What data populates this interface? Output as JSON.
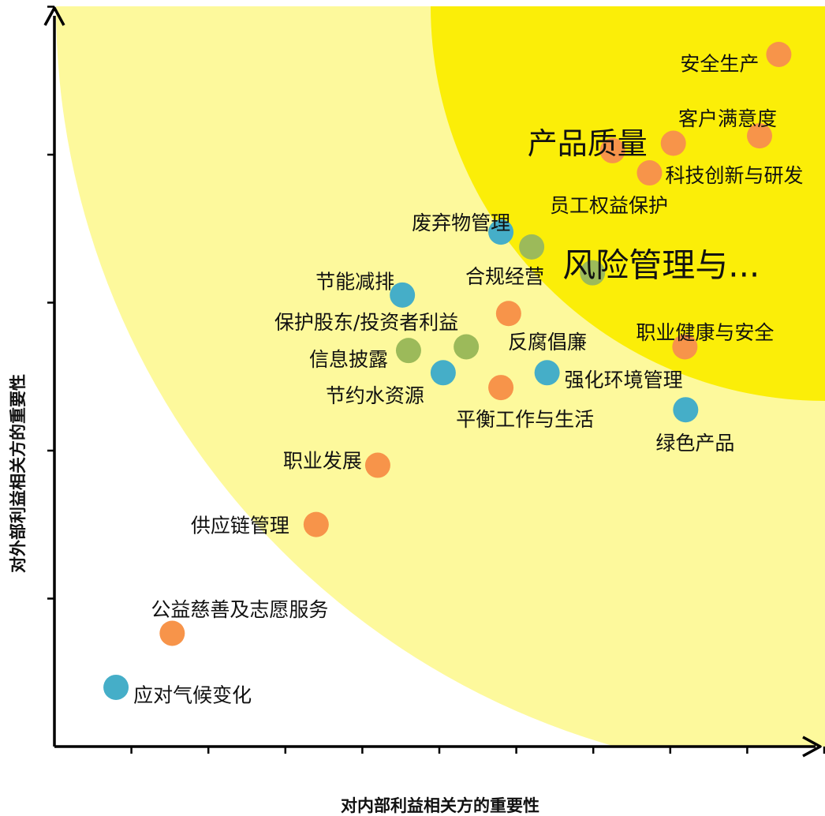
{
  "chart_data": {
    "type": "scatter",
    "title": "",
    "xlabel": "对内部利益相关方的重要性",
    "ylabel": "对外部利益相关方的重要性",
    "xlim": [
      0,
      10
    ],
    "ylim": [
      0,
      10
    ],
    "grid": false,
    "legend": "none",
    "colors": {
      "orange": "#f7944a",
      "blue": "#45aec8",
      "green": "#9cba5a",
      "outer_zone": "#fdf99c",
      "inner_zone": "#fbee08",
      "axis": "#000000"
    },
    "points": [
      {
        "label": "安全生产",
        "x": 9.41,
        "y": 9.35,
        "color": "orange"
      },
      {
        "label": "客户满意度",
        "x": 9.16,
        "y": 8.25,
        "color": "orange"
      },
      {
        "label": "产品质量",
        "x": 8.04,
        "y": 8.15,
        "color": "orange",
        "big": true
      },
      {
        "label": "",
        "x": 7.25,
        "y": 8.05,
        "color": "orange"
      },
      {
        "label": "科技创新与研发",
        "x": 7.73,
        "y": 7.75,
        "color": "orange"
      },
      {
        "label": "员工权益保护",
        "x": 0,
        "y": 0,
        "color": "none",
        "text_only": true
      },
      {
        "label": "废弃物管理",
        "x": 5.8,
        "y": 6.95,
        "color": "blue"
      },
      {
        "label": "",
        "x": 6.2,
        "y": 6.75,
        "color": "green"
      },
      {
        "label": "风险管理与...",
        "x": 6.99,
        "y": 6.4,
        "color": "green",
        "big": true
      },
      {
        "label": "合规经营",
        "x": 0,
        "y": 0,
        "color": "none",
        "text_only": true
      },
      {
        "label": "节能减排",
        "x": 4.52,
        "y": 6.1,
        "color": "blue"
      },
      {
        "label": "保护股东/投资者利益",
        "x": 5.9,
        "y": 5.85,
        "color": "orange"
      },
      {
        "label": "职业健康与安全",
        "x": 8.19,
        "y": 5.4,
        "color": "orange"
      },
      {
        "label": "反腐倡廉",
        "x": 0,
        "y": 0,
        "color": "none",
        "text_only": true
      },
      {
        "label": "信息披露",
        "x": 4.6,
        "y": 5.35,
        "color": "green"
      },
      {
        "label": "",
        "x": 5.35,
        "y": 5.4,
        "color": "green"
      },
      {
        "label": "强化环境管理",
        "x": 6.4,
        "y": 5.05,
        "color": "blue"
      },
      {
        "label": "节约水资源",
        "x": 5.05,
        "y": 5.05,
        "color": "blue"
      },
      {
        "label": "平衡工作与生活",
        "x": 5.8,
        "y": 4.85,
        "color": "orange"
      },
      {
        "label": "绿色产品",
        "x": 8.2,
        "y": 4.55,
        "color": "blue"
      },
      {
        "label": "职业发展",
        "x": 4.2,
        "y": 3.8,
        "color": "orange"
      },
      {
        "label": "供应链管理",
        "x": 3.4,
        "y": 3.0,
        "color": "orange"
      },
      {
        "label": "公益慈善及志愿服务",
        "x": 1.53,
        "y": 1.53,
        "color": "orange"
      },
      {
        "label": "应对气候变化",
        "x": 0.8,
        "y": 0.8,
        "color": "blue"
      }
    ]
  }
}
